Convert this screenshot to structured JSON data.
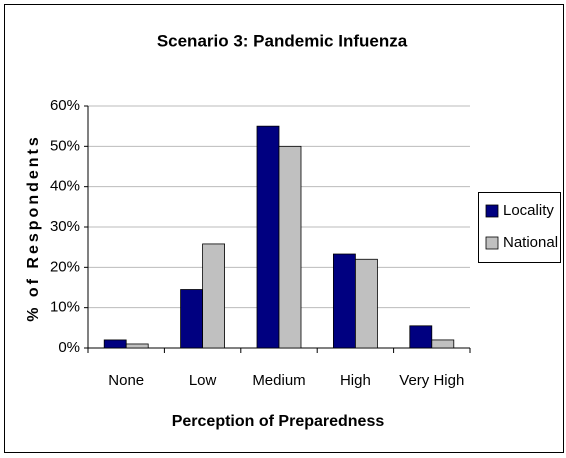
{
  "chart_data": {
    "type": "bar",
    "title": "Scenario 3: Pandemic Infuenza",
    "y_label": "% of Respondents",
    "x_label": "Perception of Preparedness",
    "categories": [
      "None",
      "Low",
      "Medium",
      "High",
      "Very High"
    ],
    "series": [
      {
        "name": "Locality",
        "color": "#000080",
        "values": [
          2,
          14.5,
          55,
          23.3,
          5.5
        ]
      },
      {
        "name": "National",
        "color": "#c0c0c0",
        "values": [
          1,
          25.8,
          50,
          22,
          2
        ]
      }
    ],
    "ylim": [
      0,
      60
    ],
    "yticks": [
      {
        "value": 0,
        "label": "0%"
      },
      {
        "value": 10,
        "label": "10%"
      },
      {
        "value": 20,
        "label": "20%"
      },
      {
        "value": 30,
        "label": "30%"
      },
      {
        "value": 40,
        "label": "40%"
      },
      {
        "value": 50,
        "label": "50%"
      },
      {
        "value": 60,
        "label": "60%"
      }
    ],
    "grid": true,
    "legend": "right"
  }
}
